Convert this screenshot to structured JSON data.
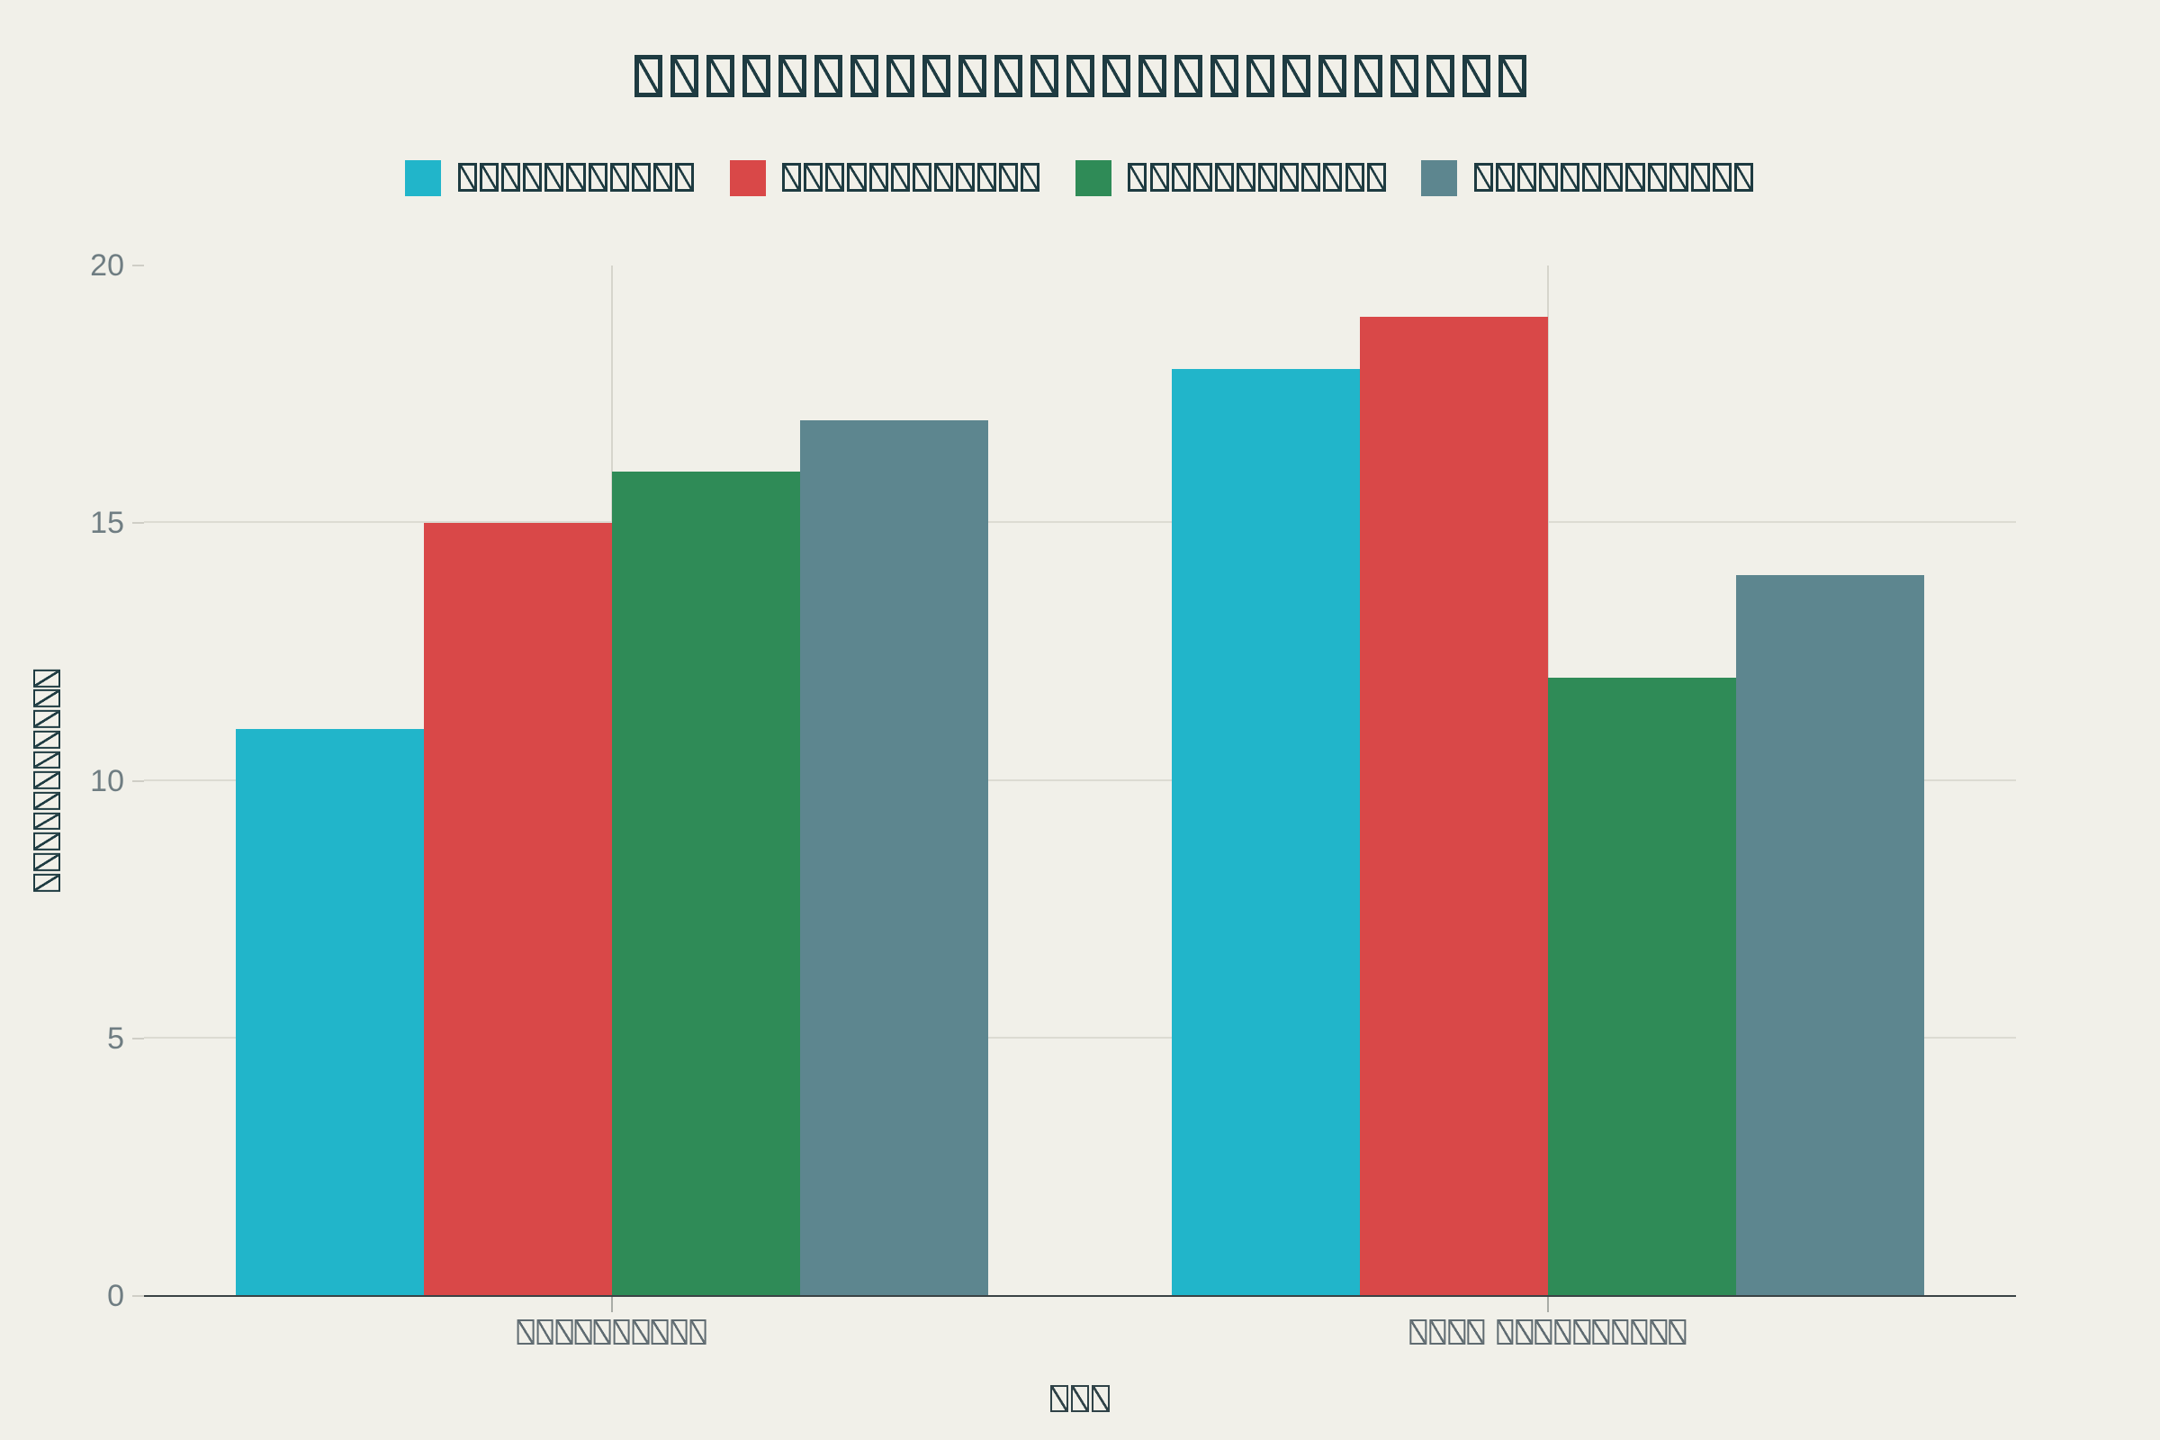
{
  "title": "□□□□□□□□□□□□□□□□□□□□□□□□□",
  "colors": {
    "background": "#f1f0e9",
    "gridline": "#dcdbd2",
    "axis_line": "#3a4345",
    "tick_label": "#6f7d82",
    "category_label": "#5f6b71",
    "text_dark": "#1e3b41"
  },
  "chart_data": {
    "type": "bar",
    "title": "□□□□□□□□□□□□□□□□□□□□□□□□□",
    "categories": [
      "□□□□□□□□□□",
      "□□□□ □□□□□□□□□□"
    ],
    "series": [
      {
        "name": "□□□□□□□□□□□",
        "color": "#21b5ca",
        "values": [
          11,
          18
        ]
      },
      {
        "name": "□□□□□□□□□□□□",
        "color": "#d94848",
        "values": [
          15,
          19
        ]
      },
      {
        "name": "□□□□□□□□□□□□",
        "color": "#2f8b57",
        "values": [
          16,
          12
        ]
      },
      {
        "name": "□□□□□□□□□□□□□",
        "color": "#5d868f",
        "values": [
          17,
          14
        ]
      }
    ],
    "xlabel": "□□□",
    "ylabel": "□□□□□□□□□□□",
    "ylim": [
      0,
      20
    ],
    "yticks": [
      0,
      5,
      10,
      15,
      20
    ],
    "grid": true,
    "legend_position": "top-center",
    "note_glyphs": "all text rendered as missing-glyph tofu boxes in source image"
  }
}
